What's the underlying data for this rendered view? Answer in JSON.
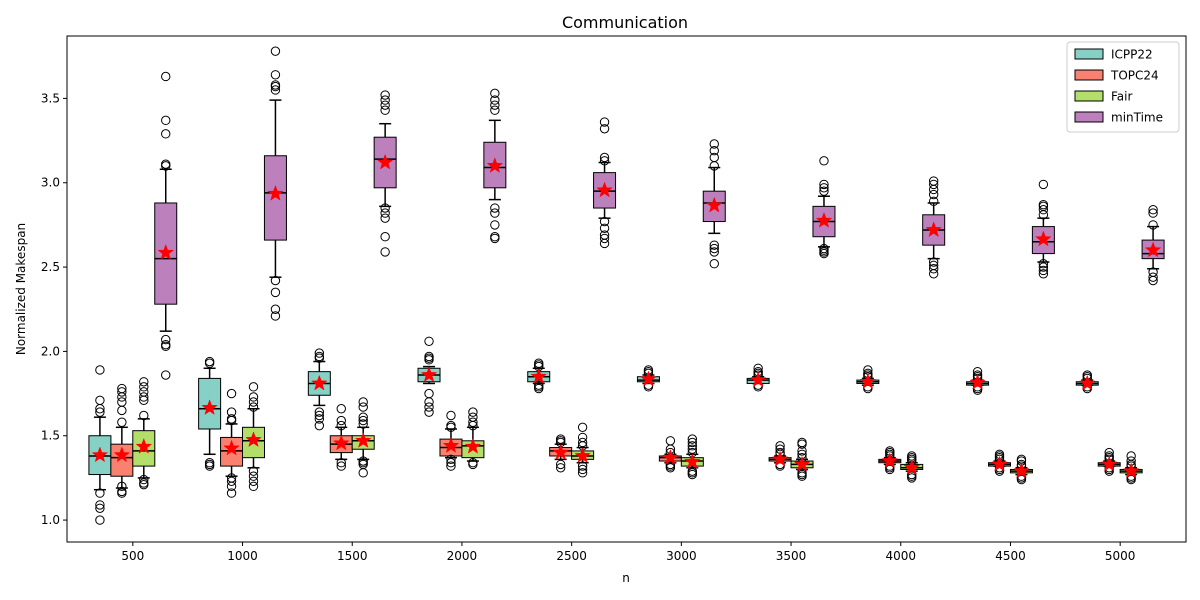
{
  "chart_data": {
    "type": "box",
    "title": "Communication",
    "xlabel": "n",
    "ylabel": "Normalized Makespan",
    "categories": [
      500,
      1000,
      1500,
      2000,
      2500,
      3000,
      3500,
      4000,
      4500,
      5000
    ],
    "xlim": [
      200,
      5300
    ],
    "ylim": [
      0.87,
      3.87
    ],
    "yticks": [
      1.0,
      1.5,
      2.0,
      2.5,
      3.0,
      3.5
    ],
    "yticklabels": [
      "1.0",
      "1.5",
      "2.0",
      "2.5",
      "3.0",
      "3.5"
    ],
    "legend": {
      "position": "top-right"
    },
    "mean_marker": {
      "shape": "star",
      "color": "#ff0000"
    },
    "series": [
      {
        "name": "ICPP22",
        "color": "#87d0c6",
        "x": [
          350,
          850,
          1350,
          1850,
          2350,
          2850,
          3350,
          3850,
          4350,
          4850
        ],
        "boxes": [
          {
            "whislo": 1.18,
            "q1": 1.27,
            "med": 1.38,
            "q3": 1.5,
            "whishi": 1.61,
            "mean": 1.385,
            "fliers": [
              1.0,
              1.07,
              1.09,
              1.16,
              1.64,
              1.66,
              1.71,
              1.89
            ]
          },
          {
            "whislo": 1.39,
            "q1": 1.54,
            "med": 1.66,
            "q3": 1.84,
            "whishi": 1.9,
            "mean": 1.665,
            "fliers": [
              1.32,
              1.33,
              1.34,
              1.93,
              1.94
            ]
          },
          {
            "whislo": 1.68,
            "q1": 1.74,
            "med": 1.81,
            "q3": 1.88,
            "whishi": 1.94,
            "mean": 1.81,
            "fliers": [
              1.56,
              1.6,
              1.62,
              1.64,
              1.96,
              1.97,
              1.99
            ]
          },
          {
            "whislo": 1.81,
            "q1": 1.82,
            "med": 1.86,
            "q3": 1.9,
            "whishi": 1.91,
            "mean": 1.86,
            "fliers": [
              1.64,
              1.67,
              1.7,
              1.75,
              1.95,
              1.96,
              1.97,
              2.06
            ]
          },
          {
            "whislo": 1.81,
            "q1": 1.82,
            "med": 1.85,
            "q3": 1.88,
            "whishi": 1.9,
            "mean": 1.85,
            "fliers": [
              1.78,
              1.79,
              1.8,
              1.91,
              1.92,
              1.93
            ]
          },
          {
            "whislo": 1.81,
            "q1": 1.82,
            "med": 1.83,
            "q3": 1.85,
            "whishi": 1.86,
            "mean": 1.835,
            "fliers": [
              1.79,
              1.8,
              1.87,
              1.88,
              1.89
            ]
          },
          {
            "whislo": 1.81,
            "q1": 1.81,
            "med": 1.83,
            "q3": 1.84,
            "whishi": 1.85,
            "mean": 1.83,
            "fliers": [
              1.79,
              1.8,
              1.86,
              1.87,
              1.88,
              1.9
            ]
          },
          {
            "whislo": 1.8,
            "q1": 1.81,
            "med": 1.82,
            "q3": 1.83,
            "whishi": 1.84,
            "mean": 1.82,
            "fliers": [
              1.78,
              1.79,
              1.85,
              1.86,
              1.87,
              1.89
            ]
          },
          {
            "whislo": 1.8,
            "q1": 1.8,
            "med": 1.81,
            "q3": 1.82,
            "whishi": 1.83,
            "mean": 1.815,
            "fliers": [
              1.77,
              1.78,
              1.79,
              1.84,
              1.85,
              1.86,
              1.88
            ]
          },
          {
            "whislo": 1.8,
            "q1": 1.8,
            "med": 1.81,
            "q3": 1.82,
            "whishi": 1.83,
            "mean": 1.81,
            "fliers": [
              1.78,
              1.79,
              1.84,
              1.85,
              1.86
            ]
          }
        ]
      },
      {
        "name": "TOPC24",
        "color": "#f8816f",
        "x": [
          450,
          950,
          1450,
          1950,
          2450,
          2950,
          3450,
          3950,
          4450,
          4950
        ],
        "boxes": [
          {
            "whislo": 1.19,
            "q1": 1.26,
            "med": 1.37,
            "q3": 1.45,
            "whishi": 1.55,
            "mean": 1.385,
            "fliers": [
              1.16,
              1.17,
              1.2,
              1.58,
              1.65,
              1.7,
              1.73,
              1.76,
              1.78
            ]
          },
          {
            "whislo": 1.26,
            "q1": 1.32,
            "med": 1.41,
            "q3": 1.49,
            "whishi": 1.57,
            "mean": 1.425,
            "fliers": [
              1.16,
              1.2,
              1.23,
              1.25,
              1.59,
              1.6,
              1.64,
              1.75
            ]
          },
          {
            "whislo": 1.36,
            "q1": 1.4,
            "med": 1.45,
            "q3": 1.5,
            "whishi": 1.55,
            "mean": 1.455,
            "fliers": [
              1.32,
              1.34,
              1.56,
              1.59,
              1.66
            ]
          },
          {
            "whislo": 1.37,
            "q1": 1.38,
            "med": 1.43,
            "q3": 1.48,
            "whishi": 1.54,
            "mean": 1.44,
            "fliers": [
              1.32,
              1.34,
              1.36,
              1.55,
              1.56,
              1.62
            ]
          },
          {
            "whislo": 1.36,
            "q1": 1.38,
            "med": 1.41,
            "q3": 1.43,
            "whishi": 1.45,
            "mean": 1.4,
            "fliers": [
              1.31,
              1.33,
              1.46,
              1.47,
              1.48
            ]
          },
          {
            "whislo": 1.34,
            "q1": 1.35,
            "med": 1.37,
            "q3": 1.38,
            "whishi": 1.39,
            "mean": 1.37,
            "fliers": [
              1.31,
              1.32,
              1.33,
              1.4,
              1.42,
              1.47
            ]
          },
          {
            "whislo": 1.34,
            "q1": 1.35,
            "med": 1.36,
            "q3": 1.37,
            "whishi": 1.38,
            "mean": 1.36,
            "fliers": [
              1.32,
              1.33,
              1.39,
              1.4,
              1.42,
              1.44
            ]
          },
          {
            "whislo": 1.33,
            "q1": 1.34,
            "med": 1.35,
            "q3": 1.36,
            "whishi": 1.37,
            "mean": 1.35,
            "fliers": [
              1.3,
              1.31,
              1.32,
              1.38,
              1.39,
              1.4,
              1.41
            ]
          },
          {
            "whislo": 1.32,
            "q1": 1.32,
            "med": 1.33,
            "q3": 1.34,
            "whishi": 1.35,
            "mean": 1.33,
            "fliers": [
              1.29,
              1.3,
              1.31,
              1.36,
              1.37,
              1.38,
              1.39
            ]
          },
          {
            "whislo": 1.32,
            "q1": 1.32,
            "med": 1.33,
            "q3": 1.34,
            "whishi": 1.35,
            "mean": 1.33,
            "fliers": [
              1.29,
              1.3,
              1.31,
              1.36,
              1.37,
              1.38,
              1.4
            ]
          }
        ]
      },
      {
        "name": "Fair",
        "color": "#b3de69",
        "x": [
          550,
          1050,
          1550,
          2050,
          2550,
          3050,
          3550,
          4050,
          4550,
          5050
        ],
        "boxes": [
          {
            "whislo": 1.25,
            "q1": 1.32,
            "med": 1.41,
            "q3": 1.53,
            "whishi": 1.6,
            "mean": 1.435,
            "fliers": [
              1.21,
              1.22,
              1.24,
              1.62,
              1.71,
              1.73,
              1.76,
              1.79,
              1.82
            ]
          },
          {
            "whislo": 1.31,
            "q1": 1.37,
            "med": 1.47,
            "q3": 1.55,
            "whishi": 1.66,
            "mean": 1.475,
            "fliers": [
              1.2,
              1.23,
              1.26,
              1.29,
              1.67,
              1.7,
              1.73,
              1.79
            ]
          },
          {
            "whislo": 1.36,
            "q1": 1.42,
            "med": 1.47,
            "q3": 1.5,
            "whishi": 1.55,
            "mean": 1.47,
            "fliers": [
              1.28,
              1.33,
              1.34,
              1.35,
              1.57,
              1.59,
              1.61,
              1.67,
              1.7
            ]
          },
          {
            "whislo": 1.35,
            "q1": 1.37,
            "med": 1.44,
            "q3": 1.47,
            "whishi": 1.55,
            "mean": 1.435,
            "fliers": [
              1.33,
              1.34,
              1.56,
              1.58,
              1.61,
              1.64
            ]
          },
          {
            "whislo": 1.34,
            "q1": 1.36,
            "med": 1.38,
            "q3": 1.41,
            "whishi": 1.43,
            "mean": 1.38,
            "fliers": [
              1.28,
              1.3,
              1.32,
              1.44,
              1.46,
              1.49,
              1.55
            ]
          },
          {
            "whislo": 1.31,
            "q1": 1.32,
            "med": 1.35,
            "q3": 1.37,
            "whishi": 1.39,
            "mean": 1.345,
            "fliers": [
              1.27,
              1.28,
              1.29,
              1.4,
              1.42,
              1.44,
              1.46,
              1.48
            ]
          },
          {
            "whislo": 1.3,
            "q1": 1.31,
            "med": 1.33,
            "q3": 1.35,
            "whishi": 1.36,
            "mean": 1.33,
            "fliers": [
              1.26,
              1.27,
              1.28,
              1.37,
              1.39,
              1.41,
              1.45,
              1.46
            ]
          },
          {
            "whislo": 1.29,
            "q1": 1.3,
            "med": 1.31,
            "q3": 1.33,
            "whishi": 1.34,
            "mean": 1.31,
            "fliers": [
              1.25,
              1.26,
              1.27,
              1.35,
              1.36,
              1.37,
              1.38
            ]
          },
          {
            "whislo": 1.27,
            "q1": 1.28,
            "med": 1.29,
            "q3": 1.3,
            "whishi": 1.31,
            "mean": 1.29,
            "fliers": [
              1.24,
              1.25,
              1.26,
              1.32,
              1.33,
              1.35,
              1.36
            ]
          },
          {
            "whislo": 1.27,
            "q1": 1.28,
            "med": 1.29,
            "q3": 1.3,
            "whishi": 1.31,
            "mean": 1.29,
            "fliers": [
              1.24,
              1.25,
              1.26,
              1.32,
              1.33,
              1.35,
              1.38
            ]
          }
        ]
      },
      {
        "name": "minTime",
        "color": "#bc80bd",
        "x": [
          650,
          1150,
          1650,
          2150,
          2650,
          3150,
          3650,
          4150,
          4650,
          5150
        ],
        "boxes": [
          {
            "whislo": 2.12,
            "q1": 2.28,
            "med": 2.55,
            "q3": 2.88,
            "whishi": 3.08,
            "mean": 2.585,
            "fliers": [
              1.86,
              2.03,
              2.04,
              2.07,
              3.1,
              3.11,
              3.29,
              3.37,
              3.63
            ]
          },
          {
            "whislo": 2.44,
            "q1": 2.66,
            "med": 2.94,
            "q3": 3.16,
            "whishi": 3.49,
            "mean": 2.935,
            "fliers": [
              2.21,
              2.25,
              2.35,
              2.42,
              3.55,
              3.57,
              3.58,
              3.64,
              3.78
            ]
          },
          {
            "whislo": 2.86,
            "q1": 2.97,
            "med": 3.14,
            "q3": 3.27,
            "whishi": 3.35,
            "mean": 3.12,
            "fliers": [
              2.59,
              2.68,
              2.79,
              2.82,
              2.85,
              3.43,
              3.46,
              3.49,
              3.52
            ]
          },
          {
            "whislo": 2.9,
            "q1": 2.97,
            "med": 3.09,
            "q3": 3.24,
            "whishi": 3.37,
            "mean": 3.1,
            "fliers": [
              2.67,
              2.68,
              2.75,
              2.82,
              2.85,
              3.43,
              3.46,
              3.49,
              3.53
            ]
          },
          {
            "whislo": 2.79,
            "q1": 2.85,
            "med": 2.95,
            "q3": 3.06,
            "whishi": 3.12,
            "mean": 2.955,
            "fliers": [
              2.64,
              2.67,
              2.69,
              2.73,
              2.77,
              3.13,
              3.15,
              3.32,
              3.36
            ]
          },
          {
            "whislo": 2.7,
            "q1": 2.77,
            "med": 2.88,
            "q3": 2.95,
            "whishi": 3.09,
            "mean": 2.865,
            "fliers": [
              2.52,
              2.59,
              2.61,
              2.63,
              3.1,
              3.15,
              3.19,
              3.23
            ]
          },
          {
            "whislo": 2.62,
            "q1": 2.68,
            "med": 2.77,
            "q3": 2.86,
            "whishi": 2.92,
            "mean": 2.775,
            "fliers": [
              2.58,
              2.59,
              2.6,
              2.61,
              2.95,
              2.97,
              2.99,
              3.13
            ]
          },
          {
            "whislo": 2.55,
            "q1": 2.63,
            "med": 2.72,
            "q3": 2.81,
            "whishi": 2.88,
            "mean": 2.72,
            "fliers": [
              2.46,
              2.49,
              2.51,
              2.53,
              2.89,
              2.93,
              2.96,
              2.99,
              3.01
            ]
          },
          {
            "whislo": 2.53,
            "q1": 2.58,
            "med": 2.65,
            "q3": 2.74,
            "whishi": 2.79,
            "mean": 2.665,
            "fliers": [
              2.46,
              2.48,
              2.5,
              2.52,
              2.81,
              2.84,
              2.86,
              2.87,
              2.99
            ]
          },
          {
            "whislo": 2.49,
            "q1": 2.55,
            "med": 2.58,
            "q3": 2.66,
            "whishi": 2.74,
            "mean": 2.6,
            "fliers": [
              2.42,
              2.44,
              2.47,
              2.75,
              2.82,
              2.84
            ]
          }
        ]
      }
    ]
  }
}
